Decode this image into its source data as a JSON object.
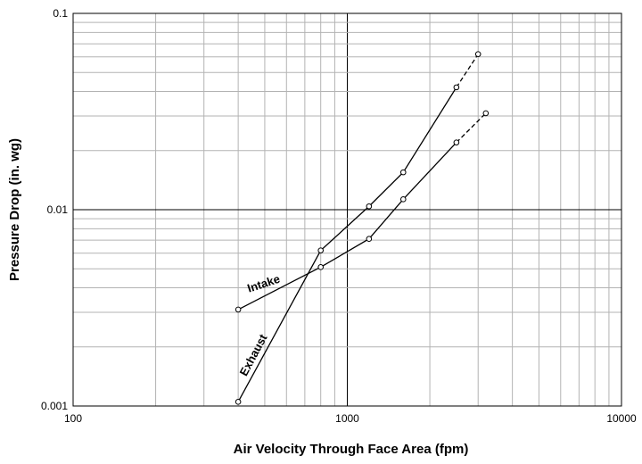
{
  "chart_data": {
    "type": "line",
    "title": "",
    "xlabel": "Air Velocity Through Face Area (fpm)",
    "ylabel": "Pressure Drop (in. wg)",
    "xscale": "log",
    "yscale": "log",
    "xlim": [
      100,
      10000
    ],
    "ylim": [
      0.001,
      0.1
    ],
    "x_tick_labels": [
      "100",
      "1000",
      "10000"
    ],
    "y_tick_labels": [
      "0.001",
      "0.01",
      "0.1"
    ],
    "grid": true,
    "legend": "none (series labeled directly on lines)",
    "series": [
      {
        "name": "Intake",
        "x": [
          400,
          800,
          1200,
          1600,
          2500
        ],
        "y": [
          0.0031,
          0.0051,
          0.0071,
          0.0113,
          0.022
        ],
        "extrapolated_to": {
          "x": 3200,
          "y": 0.031
        }
      },
      {
        "name": "Exhaust",
        "x": [
          400,
          800,
          1200,
          1600,
          2500
        ],
        "y": [
          0.00105,
          0.0062,
          0.0104,
          0.0155,
          0.042
        ],
        "extrapolated_to": {
          "x": 3000,
          "y": 0.062
        }
      }
    ],
    "colors": {
      "line": "#000000",
      "grid": "#b3b3b3",
      "major_grid": "#000000",
      "marker_fill": "#ffffff"
    }
  }
}
